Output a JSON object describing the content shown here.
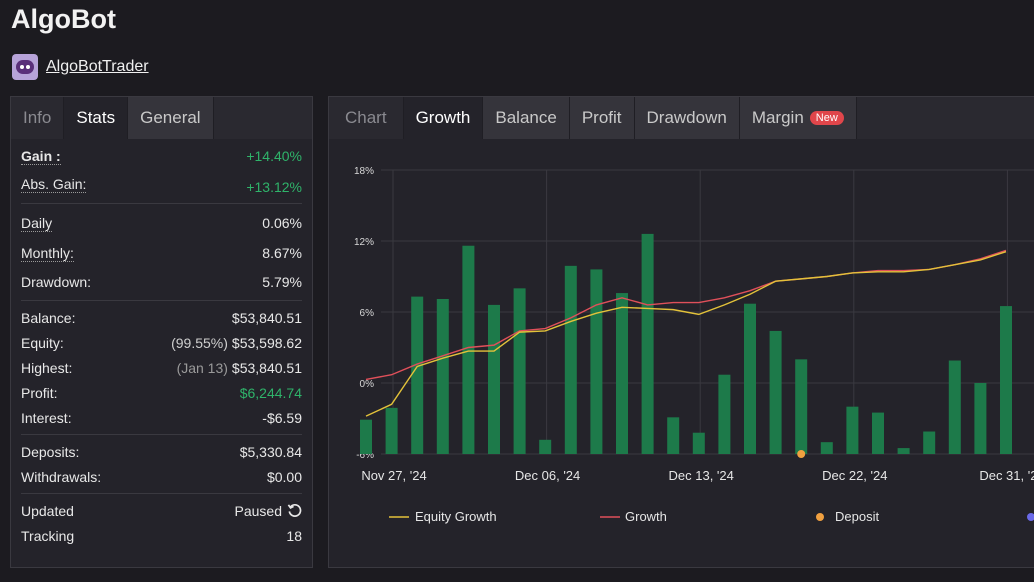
{
  "app_title": "AlgoBot",
  "user": {
    "name": "AlgoBotTrader"
  },
  "left_tabs": [
    {
      "label": "Info"
    },
    {
      "label": "Stats"
    },
    {
      "label": "General"
    }
  ],
  "stats": {
    "gain": {
      "label": "Gain :",
      "value": "+14.40%"
    },
    "abs_gain": {
      "label": "Abs. Gain:",
      "value": "+13.12%"
    },
    "daily": {
      "label": "Daily",
      "value": "0.06%"
    },
    "monthly": {
      "label": "Monthly:",
      "value": "8.67%"
    },
    "drawdown": {
      "label": "Drawdown:",
      "value": "5.79%"
    },
    "balance": {
      "label": "Balance:",
      "value": "$53,840.51"
    },
    "equity": {
      "label": "Equity:",
      "note": "(99.55%)",
      "value": "$53,598.62"
    },
    "highest": {
      "label": "Highest:",
      "note": "(Jan 13)",
      "value": "$53,840.51"
    },
    "profit": {
      "label": "Profit:",
      "value": "$6,244.74"
    },
    "interest": {
      "label": "Interest:",
      "value": "-$6.59"
    },
    "deposits": {
      "label": "Deposits:",
      "value": "$5,330.84"
    },
    "withdrawals": {
      "label": "Withdrawals:",
      "value": "$0.00"
    },
    "updated": {
      "label": "Updated",
      "value": "Paused"
    },
    "tracking": {
      "label": "Tracking",
      "value": "18"
    }
  },
  "right_tabs": [
    {
      "label": "Chart"
    },
    {
      "label": "Growth"
    },
    {
      "label": "Balance"
    },
    {
      "label": "Profit"
    },
    {
      "label": "Drawdown"
    },
    {
      "label": "Margin",
      "badge": "New"
    }
  ],
  "chart_data": {
    "type": "bar",
    "y_ticks": [
      "18%",
      "12%",
      "6%",
      "0%",
      "-6%"
    ],
    "ylim": [
      -6,
      18
    ],
    "x_tick_labels": [
      "Nov 27, '24",
      "Dec 06, '24",
      "Dec 13, '24",
      "Dec 22, '24",
      "Dec 31, '2"
    ],
    "x_tick_index": [
      0,
      6,
      12,
      18,
      24
    ],
    "bar_values": [
      -3.1,
      -2.1,
      7.3,
      7.1,
      11.6,
      6.6,
      8.0,
      -4.8,
      9.9,
      9.6,
      7.6,
      12.6,
      -2.9,
      -4.2,
      0.7,
      6.7,
      4.4,
      2.0,
      -5.0,
      -2.0,
      -2.5,
      -5.5,
      -4.1,
      1.9,
      0.0,
      6.5
    ],
    "series": [
      {
        "name": "Equity Growth",
        "color": "#e3c23a",
        "values": [
          -2.8,
          -1.8,
          1.4,
          2.1,
          2.7,
          2.7,
          4.3,
          4.4,
          5.2,
          5.9,
          6.4,
          6.3,
          6.2,
          5.8,
          6.6,
          7.5,
          8.6,
          8.8,
          9.0,
          9.3,
          9.4,
          9.4,
          9.6,
          10.0,
          10.4,
          11.1
        ]
      },
      {
        "name": "Growth",
        "color": "#e0505a",
        "values": [
          0.3,
          0.7,
          1.6,
          2.3,
          3.0,
          3.2,
          4.4,
          4.6,
          5.5,
          6.6,
          7.2,
          6.6,
          6.8,
          6.8,
          7.2,
          7.8,
          8.6,
          8.8,
          9.0,
          9.3,
          9.5,
          9.5,
          9.6,
          10.0,
          10.5,
          11.2
        ]
      },
      {
        "name": "Deposit",
        "color": "#f0a040"
      }
    ],
    "deposit_markers": [
      {
        "index": 17,
        "value": -6.0
      }
    ],
    "bar_color": "#1d7a4a",
    "grid": true,
    "legend_position": "bottom"
  }
}
